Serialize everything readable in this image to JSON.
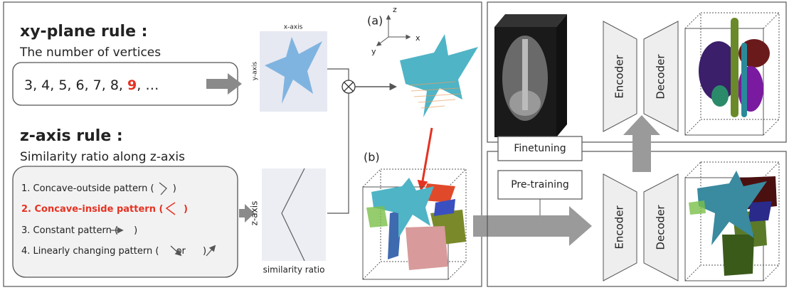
{
  "left": {
    "xy_rule": {
      "title": "xy-plane rule :",
      "subtitle": "The number of vertices",
      "sequence": {
        "before": "3, 4, 5, 6, 7, 8, ",
        "highlight": "9",
        "after": ", …"
      }
    },
    "xy_plot": {
      "x_label": "x-axis",
      "y_label": "y-axis"
    },
    "label_a": "(a)",
    "axes": {
      "z": "z",
      "x": "x",
      "y": "y"
    },
    "z_rule": {
      "title": "z-axis rule :",
      "subtitle": "Similarity ratio along z-axis",
      "items": [
        {
          "before": "1. Concave-outside pattern (",
          "after": " )"
        },
        {
          "before": "2. Concave-inside pattern (",
          "after": " )"
        },
        {
          "before": "3. Constant pattern (",
          "after": ")"
        },
        {
          "before": "4. Linearly changing pattern (",
          "middle": " or ",
          "after": " )"
        }
      ]
    },
    "z_plot": {
      "x_label": "similarity ratio",
      "y_label": "z-axis"
    },
    "label_b": "(b)"
  },
  "right": {
    "finetuning": "Finetuning",
    "pretraining": "Pre-training",
    "top": {
      "encoder": "Encoder",
      "decoder": "Decoder"
    },
    "bottom": {
      "encoder": "Encoder",
      "decoder": "Decoder"
    }
  }
}
